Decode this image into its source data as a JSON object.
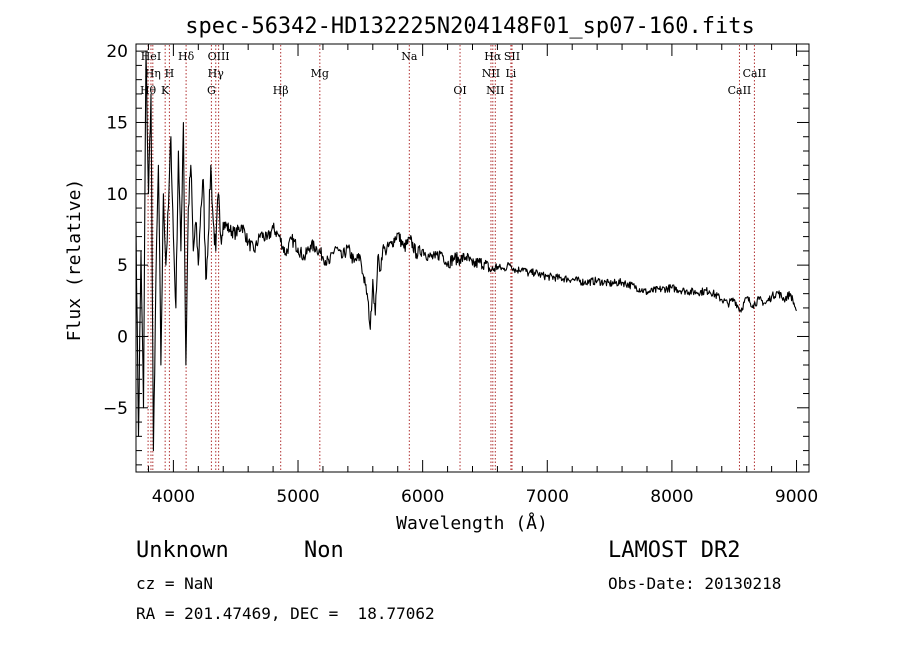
{
  "chart_data": {
    "type": "line",
    "title": "spec-56342-HD132225N204148F01_sp07-160.fits",
    "xlabel": "Wavelength (Å)",
    "ylabel": "Flux (relative)",
    "xlim": [
      3700,
      9100
    ],
    "ylim": [
      -9.5,
      20.5
    ],
    "xticks": [
      4000,
      5000,
      6000,
      7000,
      8000,
      9000
    ],
    "yticks": [
      -5,
      0,
      5,
      10,
      15,
      20
    ],
    "x_minor_step": 200,
    "y_minor_step": 1,
    "grid": false,
    "line_color": "#000000",
    "marker_color": "#b03030",
    "lines": [
      {
        "name": "HeI",
        "x": 3820,
        "row": 0
      },
      {
        "name": "Hη",
        "x": 3835,
        "row": 1
      },
      {
        "name": "Hθ",
        "x": 3797,
        "row": 2
      },
      {
        "name": "H",
        "x": 3968,
        "row": 1
      },
      {
        "name": "K",
        "x": 3934,
        "row": 2
      },
      {
        "name": "Hδ",
        "x": 4102,
        "row": 0
      },
      {
        "name": "OIII",
        "x": 4363,
        "row": 0
      },
      {
        "name": "Hγ",
        "x": 4340,
        "row": 1
      },
      {
        "name": "G",
        "x": 4305,
        "row": 2
      },
      {
        "name": "Hβ",
        "x": 4861,
        "row": 2
      },
      {
        "name": "Mg",
        "x": 5175,
        "row": 1
      },
      {
        "name": "Na",
        "x": 5893,
        "row": 0
      },
      {
        "name": "OI",
        "x": 6300,
        "row": 2
      },
      {
        "name": "Hα",
        "x": 6563,
        "row": 0
      },
      {
        "name": "NII",
        "x": 6548,
        "row": 1
      },
      {
        "name": "NII",
        "x": 6583,
        "row": 2
      },
      {
        "name": "SII",
        "x": 6717,
        "row": 0
      },
      {
        "name": "Li",
        "x": 6708,
        "row": 1
      },
      {
        "name": "CaII",
        "x": 8662,
        "row": 1
      },
      {
        "name": "CaII",
        "x": 8542,
        "row": 2
      }
    ],
    "series": [
      {
        "x": [
          3700,
          3720,
          3740,
          3760,
          3780,
          3800,
          3820,
          3840,
          3860,
          3880,
          3900,
          3920,
          3940,
          3960,
          3980,
          4000,
          4020,
          4040,
          4060,
          4080,
          4100,
          4120,
          4140,
          4160,
          4180,
          4200,
          4220,
          4240,
          4260,
          4280,
          4300,
          4320,
          4340,
          4360,
          4380,
          4400,
          4450,
          4500,
          4550,
          4600,
          4650,
          4700,
          4750,
          4800,
          4850,
          4900,
          4950,
          5000,
          5050,
          5100,
          5150,
          5200,
          5250,
          5300,
          5350,
          5400,
          5450,
          5500,
          5520,
          5540,
          5560,
          5580,
          5600,
          5620,
          5640,
          5660,
          5680,
          5700,
          5750,
          5800,
          5850,
          5900,
          5950,
          6000,
          6050,
          6100,
          6150,
          6200,
          6250,
          6300,
          6350,
          6400,
          6450,
          6500,
          6550,
          6600,
          6650,
          6700,
          6750,
          6800,
          6850,
          6900,
          6950,
          7000,
          7100,
          7200,
          7300,
          7400,
          7500,
          7600,
          7700,
          7800,
          7900,
          8000,
          8100,
          8200,
          8300,
          8400,
          8450,
          8500,
          8550,
          8600,
          8650,
          8700,
          8750,
          8800,
          8850,
          8900,
          8950,
          9000
        ],
        "values": [
          8,
          -7,
          6,
          -5,
          20,
          10,
          17,
          -8,
          4,
          12,
          -2,
          10,
          5,
          9,
          14,
          7,
          2,
          13,
          6,
          15,
          -2,
          9,
          12,
          6,
          8,
          5,
          9,
          11,
          4,
          7,
          12,
          8,
          6,
          10,
          7,
          8,
          7.5,
          7.2,
          7.8,
          6.6,
          6,
          7.2,
          6.8,
          7.6,
          7,
          5.8,
          6.8,
          6.2,
          5.5,
          6.4,
          6.2,
          5.6,
          5.1,
          6.3,
          5.5,
          6.2,
          5.2,
          5.6,
          4.4,
          3.6,
          2.6,
          0.5,
          4,
          1.5,
          5.6,
          4.6,
          6.2,
          6,
          6.5,
          7.2,
          6.2,
          6.8,
          5.8,
          6.1,
          5.6,
          5.5,
          5.9,
          5.1,
          5.5,
          5.4,
          5.6,
          5,
          5.2,
          5.1,
          4.6,
          4.9,
          4.7,
          5.1,
          4.6,
          4.8,
          4.4,
          4.5,
          4.3,
          4.2,
          4.1,
          4,
          3.8,
          3.9,
          3.7,
          3.8,
          3.5,
          3.1,
          3.3,
          3.4,
          3.2,
          3.1,
          3.2,
          2.6,
          2.3,
          2.6,
          1.8,
          2.7,
          2.2,
          2.6,
          2.3,
          2.8,
          3.1,
          2.6,
          3,
          1.8
        ]
      }
    ]
  },
  "info": {
    "object": "Unknown",
    "subclass": "Non",
    "cz": "cz = NaN",
    "radec": "RA = 201.47469, DEC =  18.77062",
    "survey": "LAMOST DR2",
    "obs_date": "Obs-Date: 20130218"
  }
}
